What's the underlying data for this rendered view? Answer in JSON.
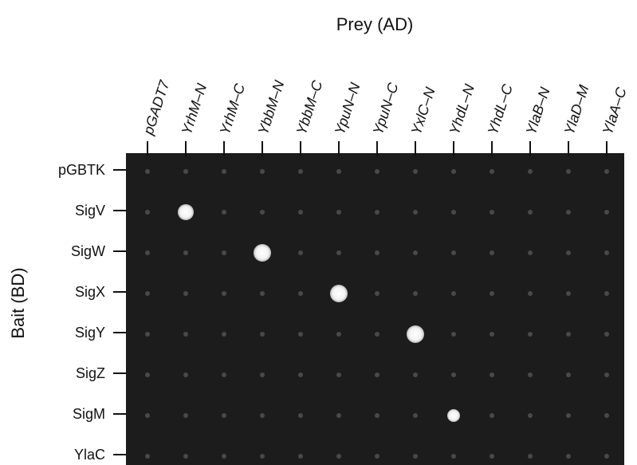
{
  "title": "Prey (AD)",
  "y_title": "Bait (BD)",
  "columns": [
    "pGADT7",
    "YrhM–N",
    "YrhM–C",
    "YbbM–N",
    "YbbM–C",
    "YpuN–N",
    "YpuN–C",
    "YxlC–N",
    "YhdL–N",
    "YhdL–C",
    "YlaB–N",
    "YlaD–M",
    "YlaA–C"
  ],
  "rows": [
    "pGBTK",
    "SigV",
    "SigW",
    "SigX",
    "SigY",
    "SigZ",
    "SigM",
    "YlaC"
  ]
}
